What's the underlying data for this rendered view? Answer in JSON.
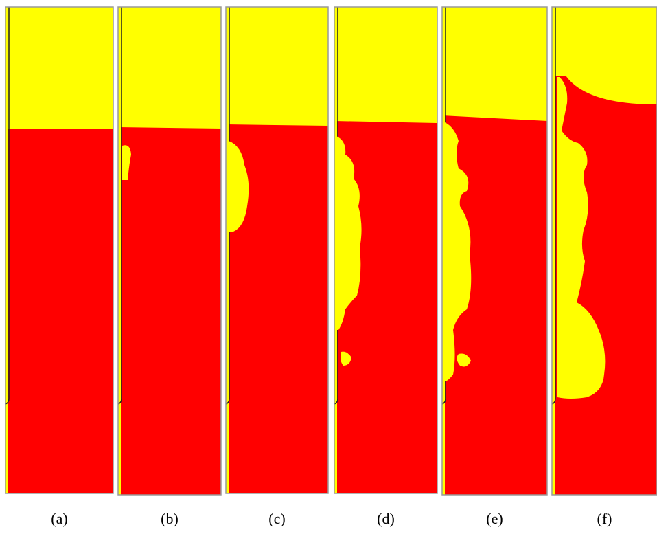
{
  "panels": {
    "labels": [
      "(a)",
      "(b)",
      "(c)",
      "(d)",
      "(e)",
      "(f)"
    ]
  }
}
